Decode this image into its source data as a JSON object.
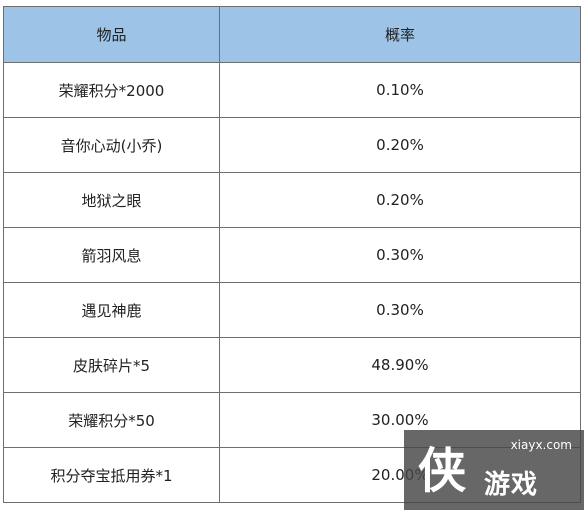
{
  "table": {
    "header": {
      "item": "物品",
      "rate": "概率"
    },
    "rows": [
      {
        "item": "荣耀积分*2000",
        "rate": "0.10%"
      },
      {
        "item": "音你心动(小乔)",
        "rate": "0.20%"
      },
      {
        "item": "地狱之眼",
        "rate": "0.20%"
      },
      {
        "item": "箭羽风息",
        "rate": "0.30%"
      },
      {
        "item": "遇见神鹿",
        "rate": "0.30%"
      },
      {
        "item": "皮肤碎片*5",
        "rate": "48.90%"
      },
      {
        "item": "荣耀积分*50",
        "rate": "30.00%"
      },
      {
        "item": "积分夺宝抵用券*1",
        "rate": "20.00%"
      }
    ]
  },
  "watermark": {
    "logo": "侠",
    "site": "xiayx.com",
    "name": "游戏"
  }
}
